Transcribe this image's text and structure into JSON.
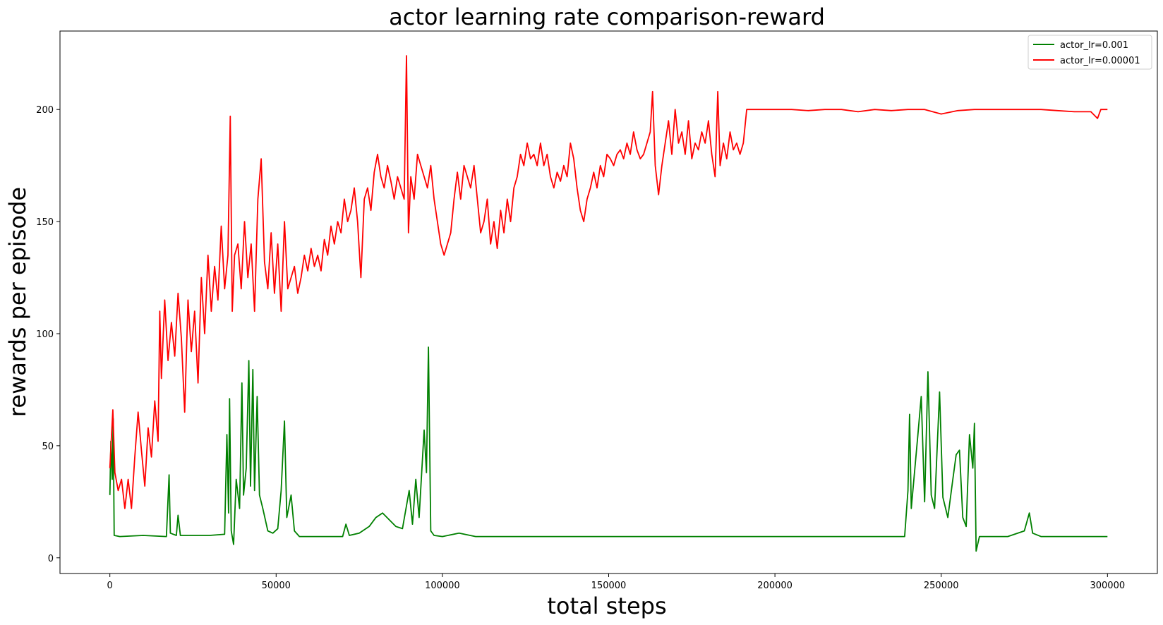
{
  "chart_data": {
    "type": "line",
    "title": "actor learning rate comparison-reward",
    "xlabel": "total steps",
    "ylabel": "rewards per episode",
    "xlim": [
      -15000,
      315000
    ],
    "ylim": [
      -7,
      235
    ],
    "xticks": [
      0,
      50000,
      100000,
      150000,
      200000,
      250000,
      300000
    ],
    "yticks": [
      0,
      50,
      100,
      150,
      200
    ],
    "grid": false,
    "legend_position": "top-right",
    "series": [
      {
        "name": "actor_lr=0.001",
        "color": "#008000",
        "values": [
          [
            0,
            28
          ],
          [
            300,
            52
          ],
          [
            700,
            35
          ],
          [
            1000,
            62
          ],
          [
            1300,
            10
          ],
          [
            3000,
            9.5
          ],
          [
            10000,
            10
          ],
          [
            17000,
            9.5
          ],
          [
            17800,
            37
          ],
          [
            18200,
            11
          ],
          [
            20000,
            10
          ],
          [
            20500,
            19
          ],
          [
            21200,
            10
          ],
          [
            30000,
            10
          ],
          [
            34500,
            10.5
          ],
          [
            35200,
            55
          ],
          [
            35700,
            20
          ],
          [
            36000,
            71
          ],
          [
            36500,
            12
          ],
          [
            37200,
            6
          ],
          [
            38000,
            35
          ],
          [
            39000,
            22
          ],
          [
            39700,
            78
          ],
          [
            40200,
            28
          ],
          [
            41000,
            40
          ],
          [
            41800,
            88
          ],
          [
            42300,
            32
          ],
          [
            43000,
            84
          ],
          [
            43500,
            30
          ],
          [
            44300,
            72
          ],
          [
            45000,
            28
          ],
          [
            46000,
            22
          ],
          [
            47500,
            12
          ],
          [
            49000,
            11
          ],
          [
            50500,
            13
          ],
          [
            51500,
            30
          ],
          [
            52500,
            61
          ],
          [
            53200,
            18
          ],
          [
            54500,
            28
          ],
          [
            55500,
            12
          ],
          [
            57000,
            9.5
          ],
          [
            70000,
            9.5
          ],
          [
            71000,
            15
          ],
          [
            72000,
            10
          ],
          [
            75000,
            11
          ],
          [
            78000,
            14
          ],
          [
            80000,
            18
          ],
          [
            82000,
            20
          ],
          [
            84000,
            17
          ],
          [
            86000,
            14
          ],
          [
            88000,
            13
          ],
          [
            90000,
            30
          ],
          [
            91000,
            15
          ],
          [
            92000,
            35
          ],
          [
            93000,
            18
          ],
          [
            94500,
            57
          ],
          [
            95200,
            38
          ],
          [
            95800,
            94
          ],
          [
            96500,
            12
          ],
          [
            97500,
            10
          ],
          [
            100000,
            9.5
          ],
          [
            105000,
            11
          ],
          [
            110000,
            9.5
          ],
          [
            150000,
            9.5
          ],
          [
            200000,
            9.5
          ],
          [
            239000,
            9.5
          ],
          [
            240000,
            30
          ],
          [
            240500,
            64
          ],
          [
            241000,
            22
          ],
          [
            243000,
            55
          ],
          [
            244000,
            72
          ],
          [
            245000,
            25
          ],
          [
            246000,
            83
          ],
          [
            247000,
            28
          ],
          [
            248000,
            22
          ],
          [
            249500,
            74
          ],
          [
            250500,
            27
          ],
          [
            252000,
            18
          ],
          [
            253500,
            35
          ],
          [
            254500,
            46
          ],
          [
            255500,
            48
          ],
          [
            256500,
            18
          ],
          [
            257500,
            14
          ],
          [
            258500,
            55
          ],
          [
            259500,
            40
          ],
          [
            260000,
            60
          ],
          [
            260500,
            3
          ],
          [
            261500,
            9.5
          ],
          [
            270000,
            9.5
          ],
          [
            275000,
            12
          ],
          [
            276500,
            20
          ],
          [
            277500,
            11
          ],
          [
            280000,
            9.5
          ],
          [
            300000,
            9.5
          ]
        ]
      },
      {
        "name": "actor_lr=0.00001",
        "color": "#ff0000",
        "values": [
          [
            0,
            40
          ],
          [
            400,
            52
          ],
          [
            900,
            66
          ],
          [
            1500,
            38
          ],
          [
            2500,
            30
          ],
          [
            3500,
            35
          ],
          [
            4500,
            22
          ],
          [
            5500,
            35
          ],
          [
            6500,
            22
          ],
          [
            7500,
            45
          ],
          [
            8500,
            65
          ],
          [
            9500,
            48
          ],
          [
            10500,
            32
          ],
          [
            11500,
            58
          ],
          [
            12500,
            45
          ],
          [
            13500,
            70
          ],
          [
            14500,
            52
          ],
          [
            15000,
            110
          ],
          [
            15500,
            80
          ],
          [
            16500,
            115
          ],
          [
            17500,
            88
          ],
          [
            18500,
            105
          ],
          [
            19500,
            90
          ],
          [
            20500,
            118
          ],
          [
            21500,
            98
          ],
          [
            22500,
            65
          ],
          [
            23500,
            115
          ],
          [
            24500,
            92
          ],
          [
            25500,
            110
          ],
          [
            26500,
            78
          ],
          [
            27500,
            125
          ],
          [
            28500,
            100
          ],
          [
            29500,
            135
          ],
          [
            30500,
            110
          ],
          [
            31500,
            130
          ],
          [
            32500,
            115
          ],
          [
            33500,
            148
          ],
          [
            34500,
            120
          ],
          [
            35500,
            135
          ],
          [
            36200,
            197
          ],
          [
            36800,
            110
          ],
          [
            37500,
            135
          ],
          [
            38500,
            140
          ],
          [
            39500,
            120
          ],
          [
            40500,
            150
          ],
          [
            41500,
            125
          ],
          [
            42500,
            140
          ],
          [
            43500,
            110
          ],
          [
            44500,
            160
          ],
          [
            45500,
            178
          ],
          [
            46500,
            132
          ],
          [
            47500,
            120
          ],
          [
            48500,
            145
          ],
          [
            49500,
            118
          ],
          [
            50500,
            140
          ],
          [
            51500,
            110
          ],
          [
            52500,
            150
          ],
          [
            53500,
            120
          ],
          [
            54500,
            125
          ],
          [
            55500,
            130
          ],
          [
            56500,
            118
          ],
          [
            57500,
            125
          ],
          [
            58500,
            135
          ],
          [
            59500,
            128
          ],
          [
            60500,
            138
          ],
          [
            61500,
            130
          ],
          [
            62500,
            135
          ],
          [
            63500,
            128
          ],
          [
            64500,
            142
          ],
          [
            65500,
            135
          ],
          [
            66500,
            148
          ],
          [
            67500,
            140
          ],
          [
            68500,
            150
          ],
          [
            69500,
            145
          ],
          [
            70500,
            160
          ],
          [
            71500,
            150
          ],
          [
            72500,
            155
          ],
          [
            73500,
            165
          ],
          [
            74500,
            150
          ],
          [
            75500,
            125
          ],
          [
            76500,
            160
          ],
          [
            77500,
            165
          ],
          [
            78500,
            155
          ],
          [
            79500,
            172
          ],
          [
            80500,
            180
          ],
          [
            81500,
            170
          ],
          [
            82500,
            165
          ],
          [
            83500,
            175
          ],
          [
            84500,
            168
          ],
          [
            85500,
            160
          ],
          [
            86500,
            170
          ],
          [
            87500,
            165
          ],
          [
            88500,
            160
          ],
          [
            89200,
            224
          ],
          [
            89800,
            145
          ],
          [
            90500,
            170
          ],
          [
            91500,
            160
          ],
          [
            92500,
            180
          ],
          [
            93500,
            175
          ],
          [
            94500,
            170
          ],
          [
            95500,
            165
          ],
          [
            96500,
            175
          ],
          [
            97500,
            160
          ],
          [
            98500,
            150
          ],
          [
            99500,
            140
          ],
          [
            100500,
            135
          ],
          [
            101500,
            140
          ],
          [
            102500,
            145
          ],
          [
            103500,
            160
          ],
          [
            104500,
            172
          ],
          [
            105500,
            160
          ],
          [
            106500,
            175
          ],
          [
            107500,
            170
          ],
          [
            108500,
            165
          ],
          [
            109500,
            175
          ],
          [
            110500,
            160
          ],
          [
            111500,
            145
          ],
          [
            112500,
            150
          ],
          [
            113500,
            160
          ],
          [
            114500,
            140
          ],
          [
            115500,
            150
          ],
          [
            116500,
            138
          ],
          [
            117500,
            155
          ],
          [
            118500,
            145
          ],
          [
            119500,
            160
          ],
          [
            120500,
            150
          ],
          [
            121500,
            165
          ],
          [
            122500,
            170
          ],
          [
            123500,
            180
          ],
          [
            124500,
            175
          ],
          [
            125500,
            185
          ],
          [
            126500,
            178
          ],
          [
            127500,
            180
          ],
          [
            128500,
            175
          ],
          [
            129500,
            185
          ],
          [
            130500,
            175
          ],
          [
            131500,
            180
          ],
          [
            132500,
            170
          ],
          [
            133500,
            165
          ],
          [
            134500,
            172
          ],
          [
            135500,
            168
          ],
          [
            136500,
            175
          ],
          [
            137500,
            170
          ],
          [
            138500,
            185
          ],
          [
            139500,
            178
          ],
          [
            140500,
            165
          ],
          [
            141500,
            155
          ],
          [
            142500,
            150
          ],
          [
            143500,
            160
          ],
          [
            144500,
            165
          ],
          [
            145500,
            172
          ],
          [
            146500,
            165
          ],
          [
            147500,
            175
          ],
          [
            148500,
            170
          ],
          [
            149500,
            180
          ],
          [
            150500,
            178
          ],
          [
            151500,
            175
          ],
          [
            152500,
            180
          ],
          [
            153500,
            182
          ],
          [
            154500,
            178
          ],
          [
            155500,
            185
          ],
          [
            156500,
            180
          ],
          [
            157500,
            190
          ],
          [
            158500,
            182
          ],
          [
            159500,
            178
          ],
          [
            160500,
            180
          ],
          [
            161500,
            185
          ],
          [
            162500,
            190
          ],
          [
            163200,
            208
          ],
          [
            164000,
            175
          ],
          [
            165000,
            162
          ],
          [
            166000,
            175
          ],
          [
            167000,
            185
          ],
          [
            168000,
            195
          ],
          [
            169000,
            180
          ],
          [
            170000,
            200
          ],
          [
            171000,
            185
          ],
          [
            172000,
            190
          ],
          [
            173000,
            180
          ],
          [
            174000,
            195
          ],
          [
            175000,
            178
          ],
          [
            176000,
            185
          ],
          [
            177000,
            182
          ],
          [
            178000,
            190
          ],
          [
            179000,
            185
          ],
          [
            180000,
            195
          ],
          [
            181000,
            180
          ],
          [
            182000,
            170
          ],
          [
            182800,
            208
          ],
          [
            183500,
            175
          ],
          [
            184500,
            185
          ],
          [
            185500,
            178
          ],
          [
            186500,
            190
          ],
          [
            187500,
            182
          ],
          [
            188500,
            185
          ],
          [
            189500,
            180
          ],
          [
            190500,
            185
          ],
          [
            191500,
            200
          ],
          [
            200000,
            200
          ],
          [
            205000,
            200
          ],
          [
            210000,
            199.5
          ],
          [
            215000,
            200
          ],
          [
            220000,
            200
          ],
          [
            225000,
            199
          ],
          [
            230000,
            200
          ],
          [
            235000,
            199.5
          ],
          [
            240000,
            200
          ],
          [
            245000,
            200
          ],
          [
            250000,
            198
          ],
          [
            255000,
            199.5
          ],
          [
            260000,
            200
          ],
          [
            265000,
            200
          ],
          [
            270000,
            200
          ],
          [
            275000,
            200
          ],
          [
            280000,
            200
          ],
          [
            285000,
            199.5
          ],
          [
            290000,
            199
          ],
          [
            295000,
            199
          ],
          [
            297000,
            196
          ],
          [
            298000,
            200
          ],
          [
            300000,
            200
          ]
        ]
      }
    ]
  }
}
